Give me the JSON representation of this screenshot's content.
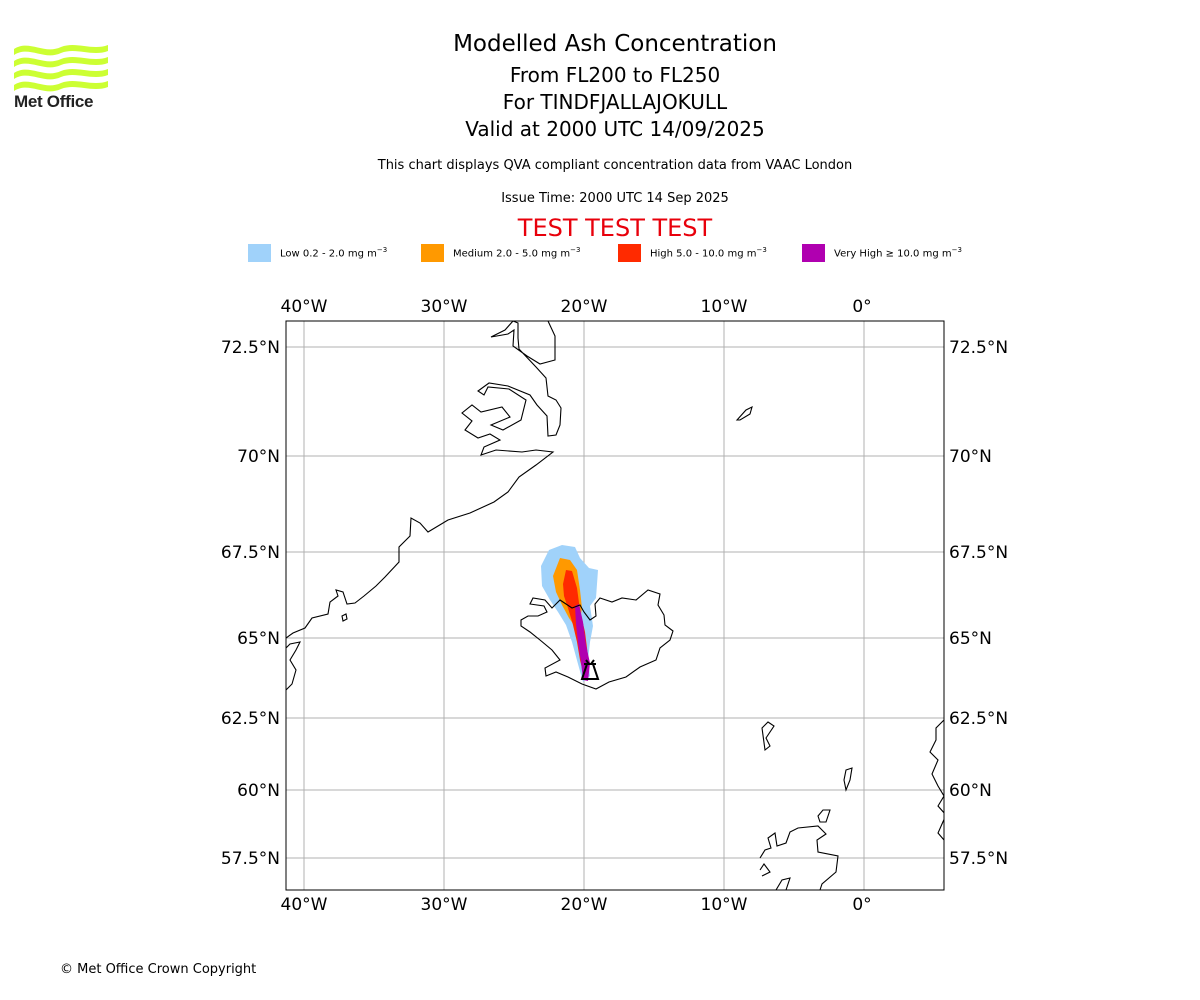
{
  "brand": {
    "logo_text": "Met Office",
    "logo_color": "#ccff33",
    "logo_icon": "met-office-wave-logo"
  },
  "header": {
    "title": "Modelled Ash Concentration",
    "level_range": "From FL200 to FL250",
    "volcano": "For TINDFJALLAJOKULL",
    "valid_time": "Valid at 2000 UTC 14/09/2025",
    "description": "This chart displays QVA compliant concentration data from VAAC London",
    "issue_time": "Issue Time: 2000 UTC 14 Sep 2025",
    "test_banner": "TEST TEST TEST",
    "test_color": "#e8000b"
  },
  "legend": [
    {
      "label": "Low 0.2 - 2.0 mg m",
      "color": "#a0d2fa"
    },
    {
      "label": "Medium 2.0 - 5.0 mg m",
      "color": "#ff9900"
    },
    {
      "label": "High 5.0 - 10.0 mg m",
      "color": "#ff2a00"
    },
    {
      "label": "Very High ≥ 10.0 mg m",
      "color": "#b000b0"
    }
  ],
  "legend_unit_exponent": "−3",
  "map": {
    "lon_labels": [
      "40°W",
      "30°W",
      "20°W",
      "10°W",
      "0°"
    ],
    "lat_labels": [
      "72.5°N",
      "70°N",
      "67.5°N",
      "65°N",
      "62.5°N",
      "60°N",
      "57.5°N"
    ],
    "extent": {
      "lon_min": -41.2,
      "lon_max": 5.8,
      "lat_min": 56.5,
      "lat_max": 73.2
    },
    "gridlines": true,
    "volcano_lon": -19.6,
    "volcano_lat": 63.8,
    "volcano_symbol": "volcano-marker-icon"
  },
  "footer": {
    "copyright": "© Met Office Crown Copyright"
  }
}
